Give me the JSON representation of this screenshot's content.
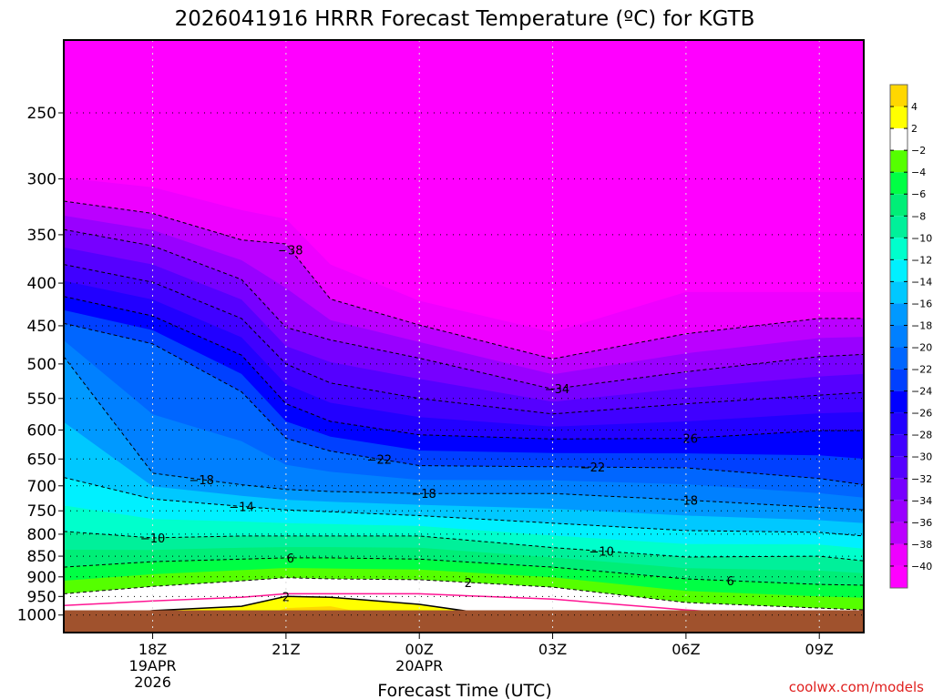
{
  "chart_data": {
    "type": "heatmap",
    "title": "2026041916 HRRR Forecast Temperature (ºC) for KGTB",
    "xlabel": "Forecast Time (UTC)",
    "ylabel": "",
    "x_unit": "hours after 16Z 19APR2026",
    "xlim": [
      0,
      18
    ],
    "ylim": [
      1050,
      205
    ],
    "y_scale": "log",
    "y_ticks": [
      250,
      300,
      350,
      400,
      450,
      500,
      550,
      600,
      650,
      700,
      750,
      800,
      850,
      900,
      950,
      1000
    ],
    "x_ticks": [
      {
        "hour": 2,
        "label": "18Z",
        "sub": [
          "19APR",
          "2026"
        ]
      },
      {
        "hour": 5,
        "label": "21Z",
        "sub": []
      },
      {
        "hour": 8,
        "label": "00Z",
        "sub": [
          "20APR"
        ]
      },
      {
        "hour": 11,
        "label": "03Z",
        "sub": []
      },
      {
        "hour": 14,
        "label": "06Z",
        "sub": []
      },
      {
        "hour": 17,
        "label": "09Z",
        "sub": []
      }
    ],
    "grid": true,
    "sample_hours": [
      0,
      2,
      4,
      5,
      6,
      8,
      11,
      14,
      17,
      18
    ],
    "isotherms_hPa": {
      "-40": [
        299,
        307,
        327,
        335,
        380,
        420,
        458,
        410,
        410,
        410
      ],
      "-38": [
        319,
        330,
        355,
        359,
        418,
        449,
        493,
        460,
        441,
        441
      ],
      "-34": [
        345,
        361,
        396,
        452,
        468,
        492,
        536,
        511,
        490,
        487
      ],
      "-30": [
        380,
        399,
        441,
        500,
        527,
        550,
        574,
        558,
        545,
        541
      ],
      "-26": [
        415,
        438,
        488,
        558,
        586,
        608,
        615,
        614,
        601,
        601
      ],
      "-22": [
        447,
        473,
        540,
        614,
        636,
        662,
        664,
        666,
        686,
        698
      ],
      "-18": [
        490,
        676,
        698,
        707,
        711,
        715,
        715,
        728,
        743,
        748
      ],
      "-14": [
        684,
        726,
        741,
        748,
        752,
        760,
        776,
        792,
        796,
        804
      ],
      "-10": [
        794,
        808,
        804,
        804,
        804,
        804,
        830,
        852,
        850,
        861
      ],
      "-6": [
        876,
        863,
        857,
        854,
        854,
        857,
        876,
        905,
        919,
        921
      ],
      "-2": [
        943,
        924,
        910,
        902,
        905,
        907,
        926,
        966,
        981,
        986
      ],
      "0": [
        974,
        962,
        952,
        943,
        943,
        943,
        957,
        986,
        1010,
        1010
      ],
      "2": [
        1023,
        988,
        976,
        950,
        952,
        971,
        1023,
        1036,
        1036,
        1036
      ],
      "4": [
        1036,
        1036,
        1023,
        981,
        976,
        1023,
        1036,
        1036,
        1036,
        1036
      ]
    },
    "surface_pressure_hPa": 987,
    "contour_labels": [
      {
        "level": -38,
        "hour": 5.1,
        "text": "-38"
      },
      {
        "level": -34,
        "hour": 11.1,
        "text": "-34"
      },
      {
        "level": -26,
        "hour": 14.1,
        "text": "26"
      },
      {
        "level": -22,
        "hour": 7.1,
        "text": "-22"
      },
      {
        "level": -22,
        "hour": 11.9,
        "text": "-22"
      },
      {
        "level": -18,
        "hour": 3.1,
        "text": "-18"
      },
      {
        "level": -18,
        "hour": 8.1,
        "text": "-18"
      },
      {
        "level": -18,
        "hour": 14.1,
        "text": "18"
      },
      {
        "level": -14,
        "hour": 4.0,
        "text": "-14"
      },
      {
        "level": -10,
        "hour": 2.0,
        "text": "-10"
      },
      {
        "level": -10,
        "hour": 12.1,
        "text": "-10"
      },
      {
        "level": -6,
        "hour": 5.1,
        "text": "6"
      },
      {
        "level": -6,
        "hour": 15.0,
        "text": "6"
      },
      {
        "level": -2,
        "hour": 9.1,
        "text": "2"
      },
      {
        "level": 2,
        "hour": 5.0,
        "text": "2"
      }
    ],
    "colorbar": {
      "labels": [
        "4",
        "2",
        "-2",
        "-4",
        "-6",
        "-8",
        "-10",
        "-12",
        "-14",
        "-16",
        "-18",
        "-20",
        "-22",
        "-24",
        "-26",
        "-28",
        "-30",
        "-32",
        "-34",
        "-36",
        "-38",
        "-40"
      ],
      "colors_top_to_bottom": [
        "#ffd700",
        "#ffff00",
        "#ffffff",
        "#55ff00",
        "#00ff44",
        "#00ee77",
        "#00f09a",
        "#00ffcc",
        "#00f0ff",
        "#00c8ff",
        "#0099ff",
        "#0080ff",
        "#0066ff",
        "#0040ff",
        "#0000ff",
        "#2200ff",
        "#4000ff",
        "#5500ff",
        "#7700ff",
        "#9900ff",
        "#bb00ff",
        "#ee00ff",
        "#ff00ff"
      ]
    },
    "colors": {
      "ground": "#a0522d",
      "zero_line": "#ff1493"
    }
  },
  "credit": "coolwx.com/models"
}
